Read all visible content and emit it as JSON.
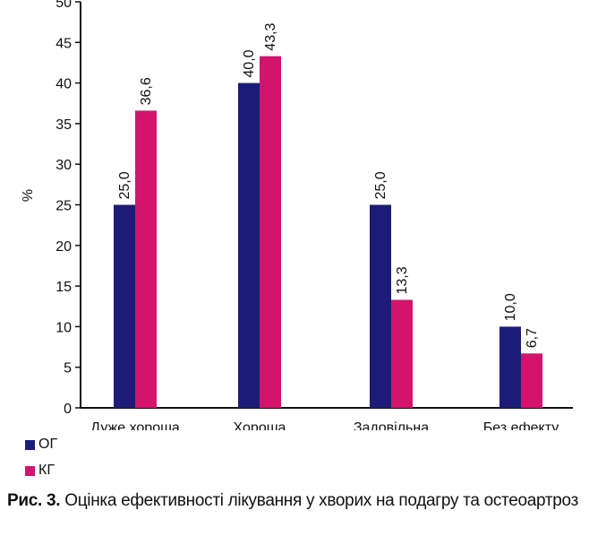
{
  "chart_data": {
    "type": "bar",
    "categories": [
      "Дуже хороша",
      "Хороша",
      "Задовільна",
      "Без ефекту"
    ],
    "series": [
      {
        "name": "ОГ",
        "values": [
          25.0,
          40.0,
          25.0,
          10.0
        ],
        "labels": [
          "25,0",
          "40,0",
          "25,0",
          "10,0"
        ],
        "color": "#1c1c78"
      },
      {
        "name": "КГ",
        "values": [
          36.6,
          43.3,
          13.3,
          6.7
        ],
        "labels": [
          "36,6",
          "43,3",
          "13,3",
          "6,7"
        ],
        "color": "#d4136f"
      }
    ],
    "ylabel": "%",
    "ylim": [
      0,
      50
    ],
    "yticks": [
      0,
      5,
      10,
      15,
      20,
      25,
      30,
      35,
      40,
      45,
      50
    ],
    "legend_position": "bottom-left",
    "grid": false
  },
  "caption": {
    "label": "Рис. 3.",
    "text": " Оцінка ефективності лікування у хворих на подагру та остеоартроз"
  }
}
